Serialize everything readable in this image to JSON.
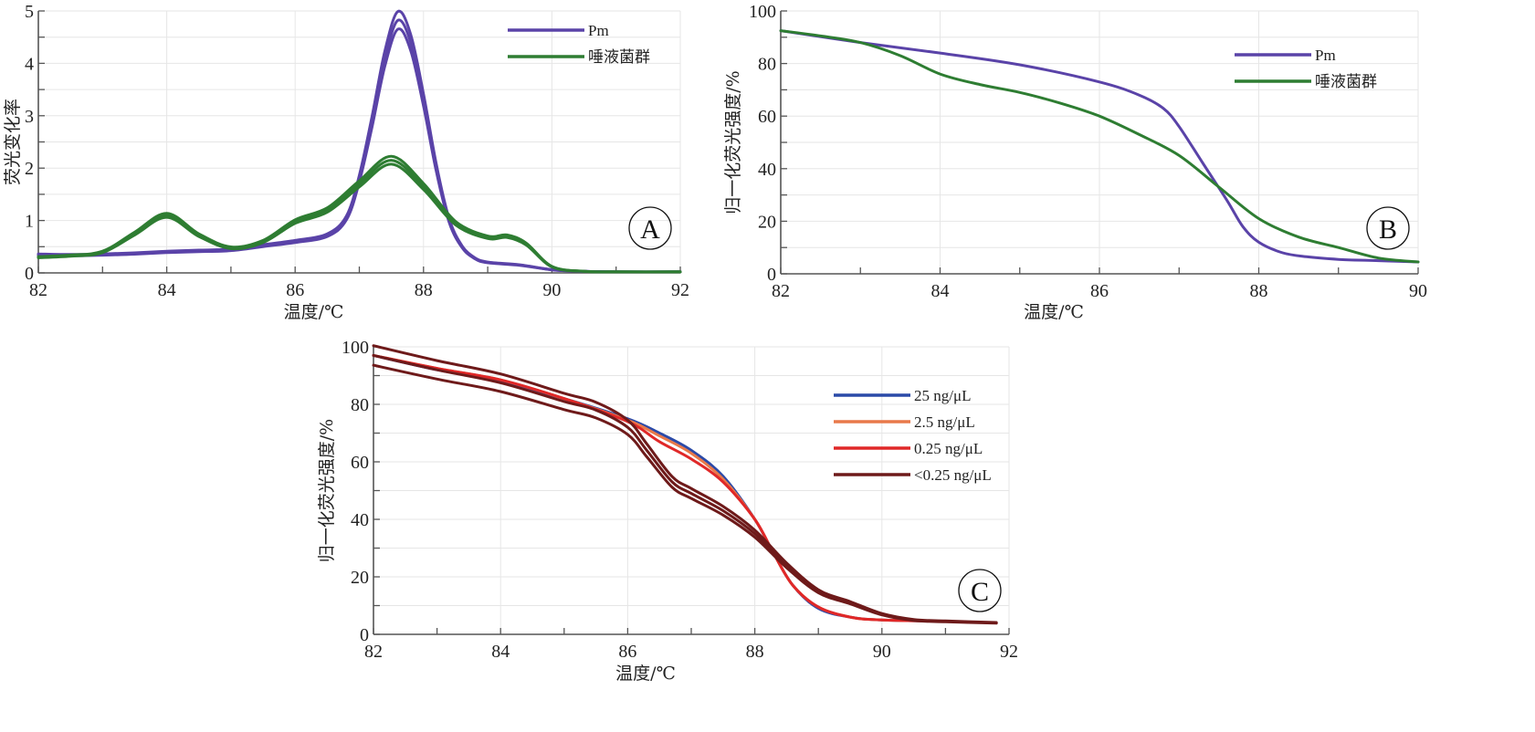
{
  "chart_data": [
    {
      "id": "A",
      "type": "line",
      "panel_label": "A",
      "xlabel": "温度/℃",
      "ylabel": "荧光变化率",
      "xlim": [
        82,
        92
      ],
      "ylim": [
        0,
        5
      ],
      "xticks": [
        82,
        84,
        86,
        88,
        90,
        92
      ],
      "yticks": [
        0,
        1,
        2,
        3,
        4,
        5
      ],
      "grid": true,
      "legend_position": "top-right",
      "series": [
        {
          "name": "Pm",
          "color": "#5a43a8",
          "replicates": 3,
          "x": [
            82,
            82.5,
            83,
            83.5,
            84,
            84.5,
            85,
            85.5,
            86,
            86.5,
            86.8,
            87,
            87.2,
            87.4,
            87.6,
            87.8,
            88,
            88.2,
            88.4,
            88.6,
            88.8,
            89,
            89.5,
            90,
            90.5,
            91,
            92
          ],
          "y": [
            0.35,
            0.34,
            0.35,
            0.37,
            0.4,
            0.42,
            0.44,
            0.52,
            0.6,
            0.72,
            1.05,
            1.8,
            2.9,
            4.1,
            4.82,
            4.4,
            3.3,
            2.0,
            1.0,
            0.5,
            0.28,
            0.2,
            0.15,
            0.06,
            0.03,
            0.02,
            0.02
          ]
        },
        {
          "name": "唾液菌群",
          "color": "#2e7d32",
          "replicates": 3,
          "x": [
            82,
            82.5,
            83,
            83.5,
            84,
            84.5,
            85,
            85.5,
            86,
            86.5,
            87,
            87.5,
            88,
            88.5,
            89,
            89.3,
            89.6,
            90,
            90.5,
            91,
            92
          ],
          "y": [
            0.3,
            0.33,
            0.4,
            0.75,
            1.1,
            0.72,
            0.48,
            0.6,
            0.98,
            1.2,
            1.7,
            2.15,
            1.65,
            0.95,
            0.68,
            0.7,
            0.55,
            0.12,
            0.03,
            0.02,
            0.02
          ]
        }
      ]
    },
    {
      "id": "B",
      "type": "line",
      "panel_label": "B",
      "xlabel": "温度/℃",
      "ylabel": "归一化荧光强度/%",
      "xlim": [
        82,
        90
      ],
      "ylim": [
        0,
        100
      ],
      "xticks": [
        82,
        84,
        86,
        88,
        90
      ],
      "yticks": [
        0,
        20,
        40,
        60,
        80,
        100
      ],
      "grid": true,
      "legend_position": "top-right",
      "series": [
        {
          "name": "Pm",
          "color": "#5a43a8",
          "x": [
            82,
            83,
            84,
            85,
            86,
            86.5,
            86.8,
            87,
            87.3,
            87.6,
            87.8,
            88,
            88.3,
            88.6,
            89,
            89.5,
            90
          ],
          "y": [
            92.5,
            88,
            84,
            79.5,
            73,
            68,
            63,
            56,
            42,
            28,
            18,
            12,
            8,
            6.5,
            5.5,
            5,
            4.5
          ]
        },
        {
          "name": "唾液菌群",
          "color": "#2e7d32",
          "x": [
            82,
            82.5,
            83,
            83.5,
            84,
            84.5,
            85,
            85.5,
            86,
            86.5,
            87,
            87.5,
            88,
            88.5,
            89,
            89.5,
            90
          ],
          "y": [
            92.5,
            90.5,
            88,
            83,
            76,
            72,
            69,
            65,
            60,
            53,
            45,
            33,
            21,
            14,
            10,
            6,
            4.5
          ]
        }
      ]
    },
    {
      "id": "C",
      "type": "line",
      "panel_label": "C",
      "xlabel": "温度/℃",
      "ylabel": "归一化荧光强度/%",
      "xlim": [
        82,
        92
      ],
      "ylim": [
        0,
        100
      ],
      "xticks": [
        82,
        84,
        86,
        88,
        90,
        92
      ],
      "yticks": [
        0,
        20,
        40,
        60,
        80,
        100
      ],
      "grid": true,
      "legend_position": "top-right",
      "series": [
        {
          "name": "25 ng/μL",
          "color": "#2b4aa8",
          "x": [
            82,
            83,
            84,
            85,
            86,
            86.5,
            87,
            87.5,
            88,
            88.3,
            88.6,
            89,
            89.5,
            90,
            91,
            91.8
          ],
          "y": [
            97,
            92,
            88,
            82,
            75,
            70,
            64,
            55,
            40,
            28,
            17,
            9,
            6,
            5,
            4.5,
            4
          ]
        },
        {
          "name": "2.5 ng/μL",
          "color": "#e8794a",
          "x": [
            82,
            83,
            84,
            85,
            86,
            86.5,
            87,
            87.5,
            88,
            88.3,
            88.6,
            89,
            89.5,
            90,
            91,
            91.8
          ],
          "y": [
            97,
            92.5,
            88.5,
            82,
            74.5,
            69,
            63,
            54,
            40,
            28,
            17,
            9.5,
            6,
            5,
            4.5,
            4
          ]
        },
        {
          "name": "0.25 ng/μL",
          "color": "#e02828",
          "x": [
            82,
            83,
            84,
            85,
            86,
            86.5,
            87,
            87.5,
            88,
            88.3,
            88.6,
            89,
            89.5,
            90,
            91,
            91.8
          ],
          "y": [
            97,
            92.5,
            88.5,
            82,
            74,
            67,
            61,
            53,
            40,
            28,
            17,
            9.5,
            6,
            5,
            4.5,
            4
          ]
        },
        {
          "name": "<0.25 ng/μL",
          "color": "#6e1a1a",
          "replicates": 3,
          "x": [
            82,
            83,
            84,
            85,
            85.5,
            86,
            86.3,
            86.7,
            87,
            87.5,
            88,
            88.5,
            89,
            89.5,
            90,
            90.5,
            91,
            91.8
          ],
          "y": [
            97,
            92,
            87.5,
            81,
            78,
            72,
            64,
            53,
            49,
            43,
            35,
            24,
            15,
            11,
            7,
            5,
            4.5,
            4
          ]
        }
      ]
    }
  ]
}
